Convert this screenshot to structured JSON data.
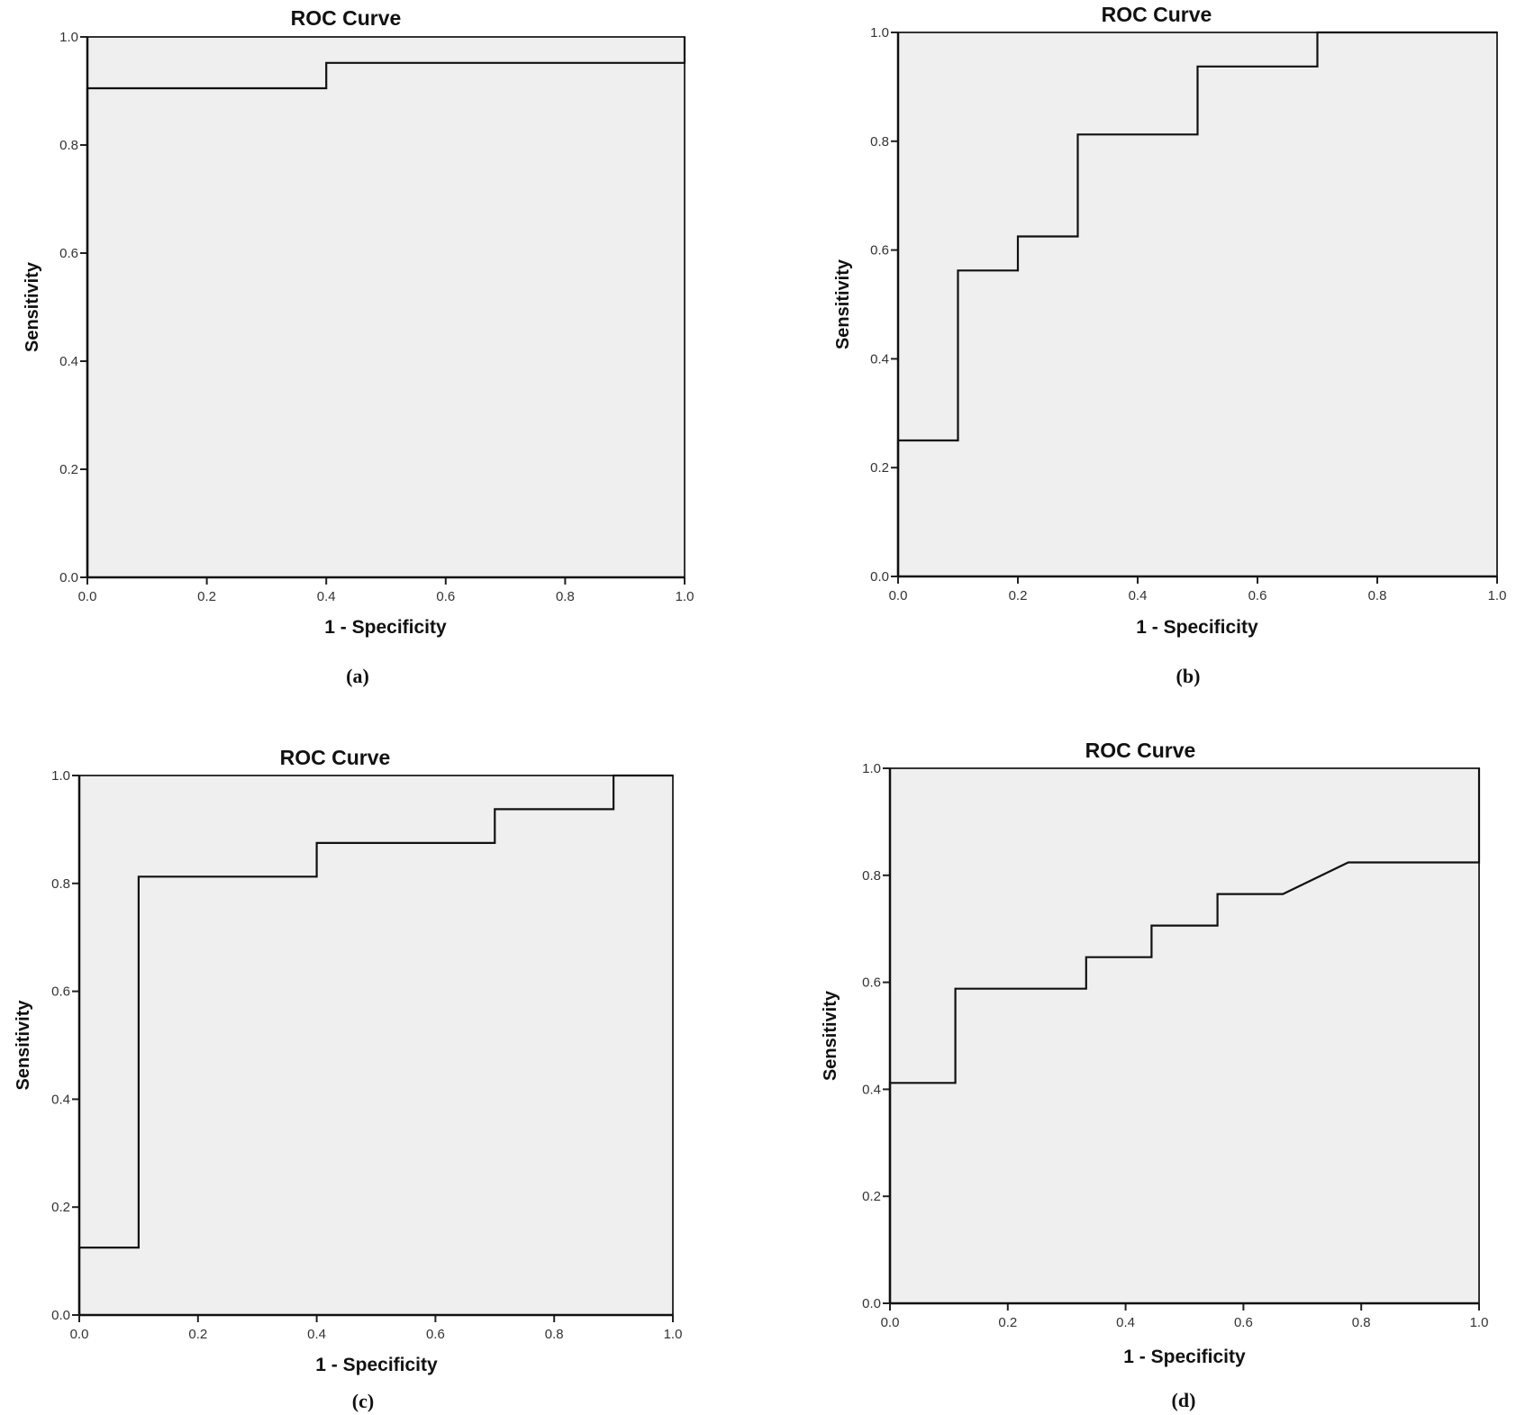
{
  "chart_data": [
    {
      "panel": "(a)",
      "type": "line",
      "title": "ROC Curve",
      "xlabel": "1 - Specificity",
      "ylabel": "Sensitivity",
      "xlim": [
        0,
        1
      ],
      "ylim": [
        0,
        1
      ],
      "xticks": [
        "0.0",
        "0.2",
        "0.4",
        "0.6",
        "0.8",
        "1.0"
      ],
      "yticks": [
        "0.0",
        "0.2",
        "0.4",
        "0.6",
        "0.8",
        "1.0"
      ],
      "grid": false,
      "series": [
        {
          "name": "ROC",
          "x": [
            0,
            0,
            0.4,
            0.4,
            1.0,
            1.0
          ],
          "y": [
            0,
            0.905,
            0.905,
            0.952,
            0.952,
            1.0
          ]
        }
      ]
    },
    {
      "panel": "(b)",
      "type": "line",
      "title": "ROC Curve",
      "xlabel": "1 - Specificity",
      "ylabel": "Sensitivity",
      "xlim": [
        0,
        1
      ],
      "ylim": [
        0,
        1
      ],
      "xticks": [
        "0.0",
        "0.2",
        "0.4",
        "0.6",
        "0.8",
        "1.0"
      ],
      "yticks": [
        "0.0",
        "0.2",
        "0.4",
        "0.6",
        "0.8",
        "1.0"
      ],
      "grid": false,
      "series": [
        {
          "name": "ROC",
          "x": [
            0,
            0,
            0.1,
            0.1,
            0.2,
            0.2,
            0.3,
            0.3,
            0.5,
            0.5,
            0.7,
            0.7,
            1.0
          ],
          "y": [
            0,
            0.25,
            0.25,
            0.5625,
            0.5625,
            0.625,
            0.625,
            0.8125,
            0.8125,
            0.9375,
            0.9375,
            1.0,
            1.0
          ]
        }
      ]
    },
    {
      "panel": "(c)",
      "type": "line",
      "title": "ROC Curve",
      "xlabel": "1 - Specificity",
      "ylabel": "Sensitivity",
      "xlim": [
        0,
        1
      ],
      "ylim": [
        0,
        1
      ],
      "xticks": [
        "0.0",
        "0.2",
        "0.4",
        "0.6",
        "0.8",
        "1.0"
      ],
      "yticks": [
        "0.0",
        "0.2",
        "0.4",
        "0.6",
        "0.8",
        "1.0"
      ],
      "grid": false,
      "series": [
        {
          "name": "ROC",
          "x": [
            0,
            0,
            0.1,
            0.1,
            0.4,
            0.4,
            0.7,
            0.7,
            0.9,
            0.9,
            1.0
          ],
          "y": [
            0,
            0.125,
            0.125,
            0.8125,
            0.8125,
            0.875,
            0.875,
            0.9375,
            0.9375,
            1.0,
            1.0
          ]
        }
      ]
    },
    {
      "panel": "(d)",
      "type": "line",
      "title": "ROC Curve",
      "xlabel": "1 - Specificity",
      "ylabel": "Sensitivity",
      "xlim": [
        0,
        1
      ],
      "ylim": [
        0,
        1
      ],
      "xticks": [
        "0.0",
        "0.2",
        "0.4",
        "0.6",
        "0.8",
        "1.0"
      ],
      "yticks": [
        "0.0",
        "0.2",
        "0.4",
        "0.6",
        "0.8",
        "1.0"
      ],
      "grid": false,
      "series": [
        {
          "name": "ROC",
          "x": [
            0,
            0,
            0.111,
            0.111,
            0.333,
            0.333,
            0.444,
            0.444,
            0.556,
            0.556,
            0.667,
            0.778,
            1.0,
            1.0
          ],
          "y": [
            0,
            0.412,
            0.412,
            0.588,
            0.588,
            0.647,
            0.647,
            0.706,
            0.706,
            0.765,
            0.765,
            0.824,
            0.824,
            1.0
          ]
        }
      ]
    }
  ],
  "colors": {
    "plot_background": "#efefef",
    "line": "#111111"
  }
}
